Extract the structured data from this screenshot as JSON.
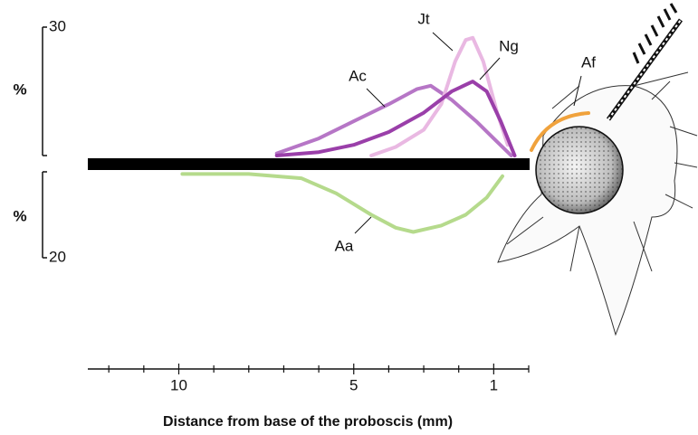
{
  "chart_data": [
    {
      "type": "line",
      "ylabel": "%",
      "ylim": [
        0,
        30
      ],
      "yticks": [
        30
      ],
      "xlim": [
        12.6,
        0
      ],
      "xticks": [
        10,
        5,
        1
      ],
      "xminorticks": [
        0,
        2,
        3,
        4,
        6,
        7,
        8,
        9,
        11,
        12
      ],
      "xlabel": "Distance from base of the proboscis (mm)",
      "annotations": [
        "Af"
      ],
      "series": [
        {
          "name": "Ac",
          "color": "#b676c6",
          "x": [
            7.2,
            6,
            5,
            4,
            3.2,
            2.8,
            2.2,
            1.5,
            1,
            0.5
          ],
          "values": [
            0.5,
            4,
            8,
            12,
            15.5,
            16.3,
            13,
            8,
            4,
            0
          ]
        },
        {
          "name": "Jt",
          "color": "#e9b8e2",
          "x": [
            4.5,
            3.8,
            3,
            2.5,
            2.1,
            1.8,
            1.6,
            1.3,
            0.9,
            0.6
          ],
          "values": [
            0,
            2,
            6,
            12,
            22,
            27,
            27.5,
            22,
            10,
            2.5
          ]
        },
        {
          "name": "Ng",
          "color": "#9a3fa9",
          "x": [
            7.2,
            6,
            5,
            4,
            3,
            2.2,
            1.6,
            1.2,
            0.8,
            0.4
          ],
          "values": [
            0,
            0.8,
            2.5,
            5.5,
            10,
            15,
            17.3,
            15,
            8,
            0
          ]
        }
      ]
    },
    {
      "type": "line",
      "ylabel": "%",
      "ylim": [
        0,
        20
      ],
      "yticks": [
        20
      ],
      "xlim": [
        12.6,
        0
      ],
      "series": [
        {
          "name": "Aa",
          "color": "#b5da8c",
          "x": [
            9.9,
            8,
            6.5,
            5.5,
            4.5,
            3.8,
            3.3,
            2.5,
            1.8,
            1.2,
            0.75
          ],
          "values": [
            0.5,
            0.5,
            1.5,
            5,
            10,
            13,
            14,
            12.5,
            10,
            6,
            1
          ]
        }
      ]
    }
  ]
}
